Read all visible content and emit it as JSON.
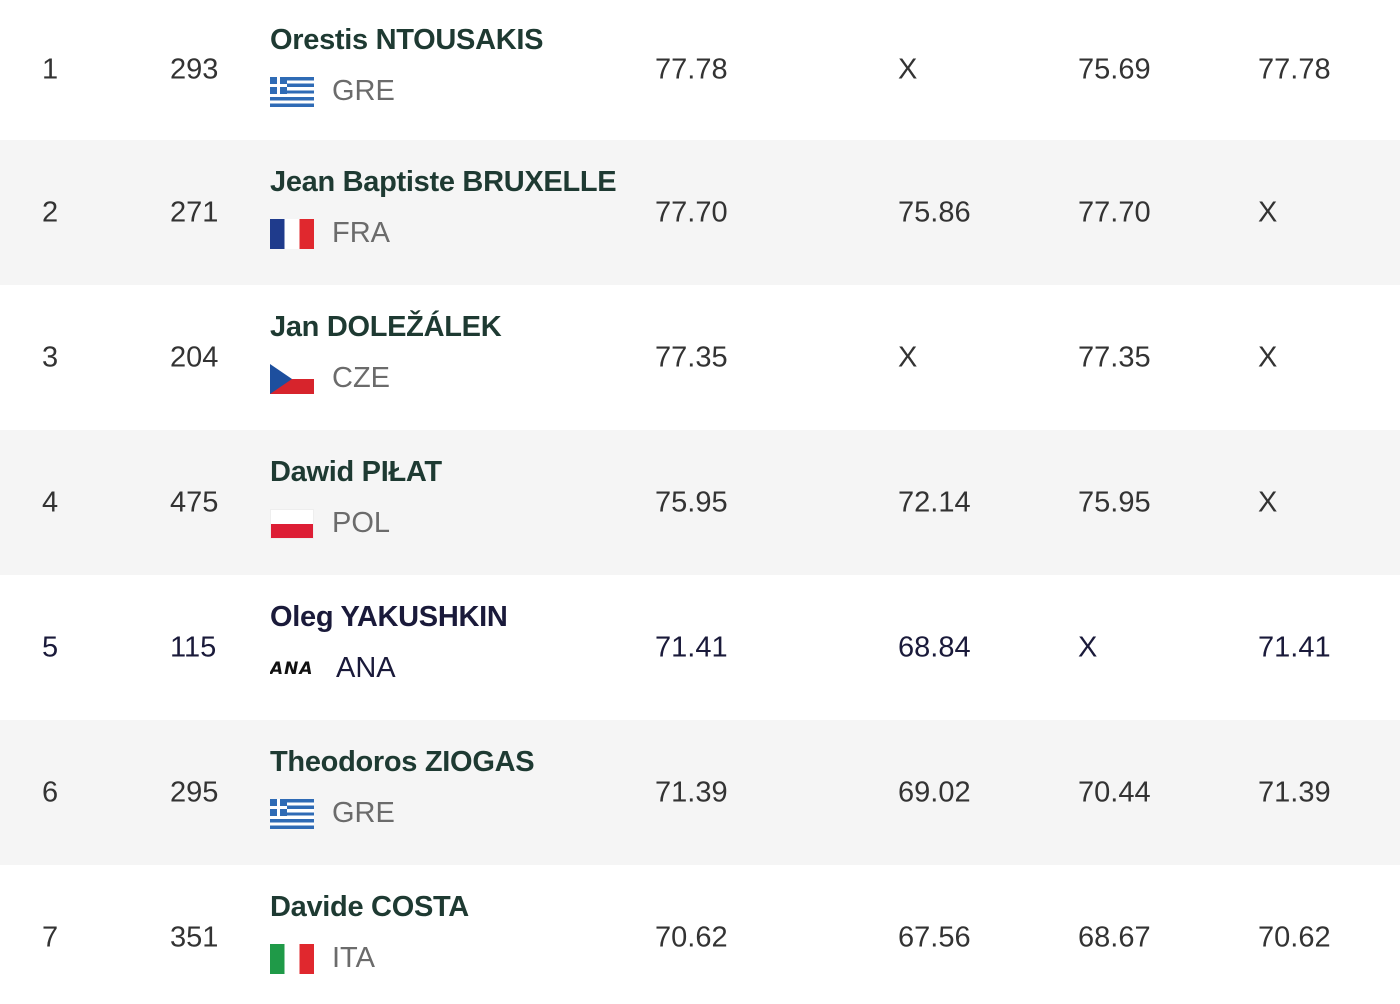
{
  "results": [
    {
      "rank": "1",
      "bib": "293",
      "name": "Orestis NTOUSAKIS",
      "country": "GRE",
      "flag": "flag-gre",
      "a1": "77.78",
      "a2": "X",
      "a3": "75.69",
      "best": "77.78"
    },
    {
      "rank": "2",
      "bib": "271",
      "name": "Jean Baptiste BRUXELLE",
      "country": "FRA",
      "flag": "flag-fra",
      "a1": "77.70",
      "a2": "75.86",
      "a3": "77.70",
      "best": "X"
    },
    {
      "rank": "3",
      "bib": "204",
      "name": "Jan DOLEŽÁLEK",
      "country": "CZE",
      "flag": "flag-cze",
      "a1": "77.35",
      "a2": "X",
      "a3": "77.35",
      "best": "X"
    },
    {
      "rank": "4",
      "bib": "475",
      "name": "Dawid PIŁAT",
      "country": "POL",
      "flag": "flag-pol",
      "a1": "75.95",
      "a2": "72.14",
      "a3": "75.95",
      "best": "X"
    },
    {
      "rank": "5",
      "bib": "115",
      "name": "Oleg YAKUSHKIN",
      "country": "ANA",
      "flag": "ANA",
      "a1": "71.41",
      "a2": "68.84",
      "a3": "X",
      "best": "71.41"
    },
    {
      "rank": "6",
      "bib": "295",
      "name": "Theodoros ZIOGAS",
      "country": "GRE",
      "flag": "flag-gre",
      "a1": "71.39",
      "a2": "69.02",
      "a3": "70.44",
      "best": "71.39"
    },
    {
      "rank": "7",
      "bib": "351",
      "name": "Davide COSTA",
      "country": "ITA",
      "flag": "flag-ita",
      "a1": "70.62",
      "a2": "67.56",
      "a3": "68.67",
      "best": "70.62"
    }
  ]
}
